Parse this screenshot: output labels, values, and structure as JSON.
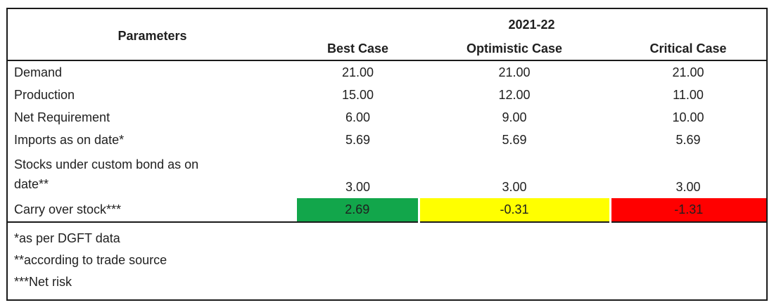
{
  "chart_data": {
    "type": "table",
    "title": "2021-22",
    "param_header": "Parameters",
    "case_headers": [
      "Best Case",
      "Optimistic Case",
      "Critical Case"
    ],
    "rows": [
      {
        "label": "Demand",
        "values": [
          "21.00",
          "21.00",
          "21.00"
        ]
      },
      {
        "label": "Production",
        "values": [
          "15.00",
          "12.00",
          "11.00"
        ]
      },
      {
        "label": "Net Requirement",
        "values": [
          "6.00",
          "9.00",
          "10.00"
        ]
      },
      {
        "label": "Imports as on date*",
        "values": [
          "5.69",
          "5.69",
          "5.69"
        ]
      },
      {
        "label": "Stocks under custom bond as on date**",
        "values": [
          "3.00",
          "3.00",
          "3.00"
        ]
      },
      {
        "label": "Carry over stock***",
        "values": [
          "2.69",
          "-0.31",
          "-1.31"
        ],
        "highlight_colors": [
          "#12A64B",
          "#FFFF00",
          "#FF0000"
        ]
      }
    ],
    "footnotes": [
      "*as per DGFT data",
      "**according to trade source",
      "***Net risk"
    ],
    "colors": {
      "best_case_highlight": "#12A64B",
      "optimistic_case_highlight": "#FFFF00",
      "critical_case_highlight": "#FF0000",
      "border": "#1A1A1A",
      "text": "#1F1F1F",
      "background": "#FFFFFF"
    },
    "layout_hints": {
      "grid": "outer border, header separator and footnote separator only; no vertical gridlines",
      "value_alignment": "center"
    }
  }
}
